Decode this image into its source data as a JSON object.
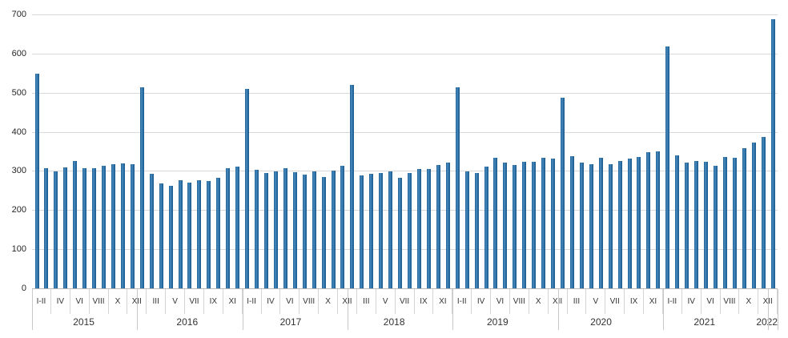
{
  "chart_data": {
    "type": "bar",
    "title": "",
    "xlabel": "",
    "ylabel": "",
    "ylim": [
      0,
      700
    ],
    "ytick_interval": 100,
    "ytick_labels": [
      "0",
      "100",
      "200",
      "300",
      "400",
      "500",
      "600",
      "700"
    ],
    "grid": "horizontal",
    "legend": "none",
    "month_names": [
      "I-II",
      "III",
      "IV",
      "V",
      "VI",
      "VII",
      "VIII",
      "IX",
      "X",
      "XI",
      "XII"
    ],
    "note_month_labels": "axis shows a month label under every second bar",
    "years": [
      {
        "year": "2015",
        "values": [
          548,
          307,
          299,
          310,
          326,
          306,
          308,
          313,
          317,
          320,
          317
        ]
      },
      {
        "year": "2016",
        "values": [
          514,
          293,
          268,
          263,
          277,
          270,
          277,
          275,
          282,
          308,
          311
        ]
      },
      {
        "year": "2017",
        "values": [
          510,
          302,
          295,
          298,
          308,
          297,
          291,
          299,
          285,
          301,
          314
        ]
      },
      {
        "year": "2018",
        "values": [
          519,
          289,
          293,
          295,
          298,
          283,
          295,
          305,
          305,
          315,
          321
        ]
      },
      {
        "year": "2019",
        "values": [
          514,
          299,
          294,
          311,
          334,
          322,
          315,
          324,
          324,
          334,
          332
        ]
      },
      {
        "year": "2020",
        "values": [
          488,
          338,
          322,
          317,
          333,
          318,
          326,
          332,
          335,
          347,
          351
        ]
      },
      {
        "year": "2021",
        "values": [
          618,
          339,
          322,
          326,
          324,
          313,
          336,
          334,
          358,
          372,
          386
        ]
      },
      {
        "year": "2022",
        "values": [
          688
        ]
      }
    ],
    "colors": {
      "bar_edge": "#1d5a8b",
      "bar_light": "#4a8ec3",
      "bar_mid": "#2d70a6",
      "gridline": "#d9d9d9",
      "axis_line": "#b7b7b7",
      "tick_line": "#c9c9c9",
      "text": "#333333"
    }
  }
}
